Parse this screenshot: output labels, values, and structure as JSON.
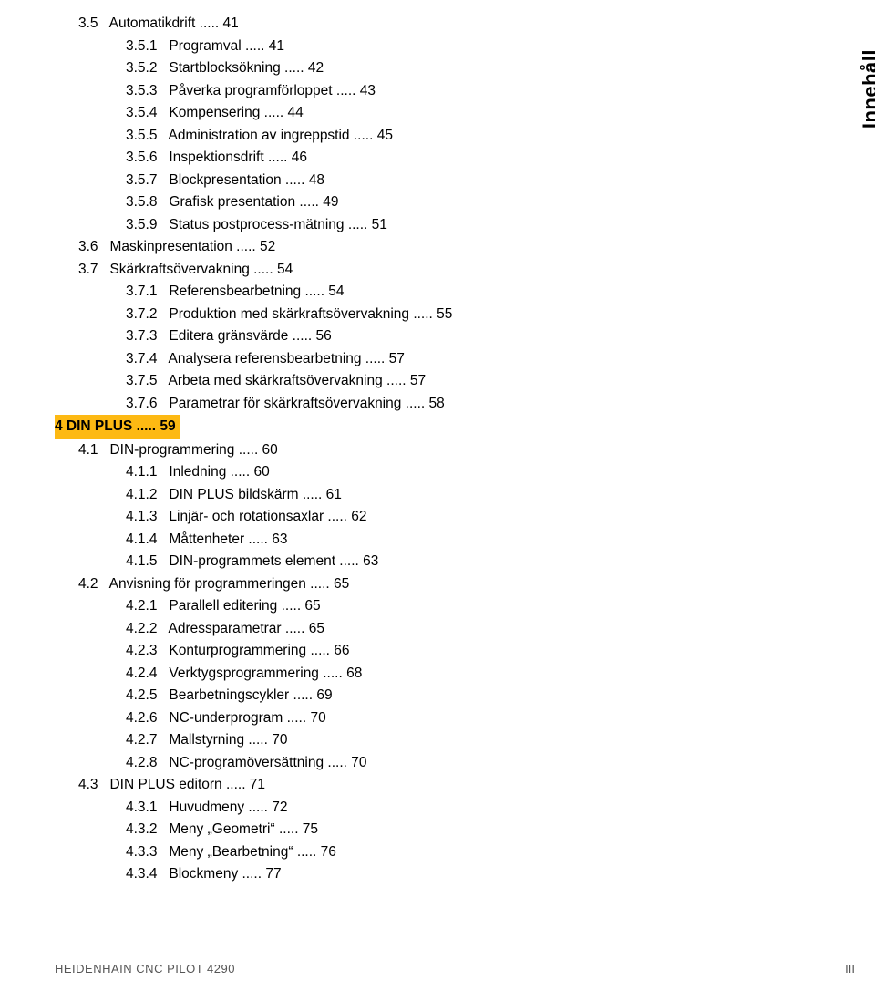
{
  "sidebar_label": "Innehåll",
  "footer_left": "HEIDENHAIN CNC PILOT 4290",
  "footer_right": "III",
  "toc": [
    {
      "level": 2,
      "num": "3.5",
      "title": "Automatikdrift",
      "page": "41"
    },
    {
      "level": 3,
      "num": "3.5.1",
      "title": "Programval",
      "page": "41"
    },
    {
      "level": 3,
      "num": "3.5.2",
      "title": "Startblocksökning",
      "page": "42"
    },
    {
      "level": 3,
      "num": "3.5.3",
      "title": "Påverka programförloppet",
      "page": "43"
    },
    {
      "level": 3,
      "num": "3.5.4",
      "title": "Kompensering",
      "page": "44"
    },
    {
      "level": 3,
      "num": "3.5.5",
      "title": "Administration av ingreppstid",
      "page": "45"
    },
    {
      "level": 3,
      "num": "3.5.6",
      "title": "Inspektionsdrift",
      "page": "46"
    },
    {
      "level": 3,
      "num": "3.5.7",
      "title": "Blockpresentation",
      "page": "48"
    },
    {
      "level": 3,
      "num": "3.5.8",
      "title": "Grafisk presentation",
      "page": "49"
    },
    {
      "level": 3,
      "num": "3.5.9",
      "title": "Status postprocess-mätning",
      "page": "51"
    },
    {
      "level": 2,
      "num": "3.6",
      "title": "Maskinpresentation",
      "page": "52"
    },
    {
      "level": 2,
      "num": "3.7",
      "title": "Skärkraftsövervakning",
      "page": "54"
    },
    {
      "level": 3,
      "num": "3.7.1",
      "title": "Referensbearbetning",
      "page": "54"
    },
    {
      "level": 3,
      "num": "3.7.2",
      "title": "Produktion med skärkraftsövervakning",
      "page": "55"
    },
    {
      "level": 3,
      "num": "3.7.3",
      "title": "Editera gränsvärde",
      "page": "56"
    },
    {
      "level": 3,
      "num": "3.7.4",
      "title": "Analysera referensbearbetning",
      "page": "57"
    },
    {
      "level": 3,
      "num": "3.7.5",
      "title": "Arbeta med skärkraftsövervakning",
      "page": "57"
    },
    {
      "level": 3,
      "num": "3.7.6",
      "title": "Parametrar för skärkraftsövervakning",
      "page": "58"
    },
    {
      "level": 1,
      "chapter": true,
      "highlight": true,
      "num": "4",
      "title": "DIN PLUS",
      "page": "59"
    },
    {
      "level": 2,
      "num": "4.1",
      "title": "DIN-programmering",
      "page": "60"
    },
    {
      "level": 3,
      "num": "4.1.1",
      "title": "Inledning",
      "page": "60"
    },
    {
      "level": 3,
      "num": "4.1.2",
      "title": "DIN PLUS bildskärm",
      "page": "61"
    },
    {
      "level": 3,
      "num": "4.1.3",
      "title": "Linjär- och rotationsaxlar",
      "page": "62"
    },
    {
      "level": 3,
      "num": "4.1.4",
      "title": "Måttenheter",
      "page": "63"
    },
    {
      "level": 3,
      "num": "4.1.5",
      "title": "DIN-programmets element",
      "page": "63"
    },
    {
      "level": 2,
      "num": "4.2",
      "title": "Anvisning för programmeringen",
      "page": "65"
    },
    {
      "level": 3,
      "num": "4.2.1",
      "title": "Parallell editering",
      "page": "65"
    },
    {
      "level": 3,
      "num": "4.2.2",
      "title": "Adressparametrar",
      "page": "65"
    },
    {
      "level": 3,
      "num": "4.2.3",
      "title": "Konturprogrammering",
      "page": "66"
    },
    {
      "level": 3,
      "num": "4.2.4",
      "title": "Verktygsprogrammering",
      "page": "68"
    },
    {
      "level": 3,
      "num": "4.2.5",
      "title": "Bearbetningscykler",
      "page": "69"
    },
    {
      "level": 3,
      "num": "4.2.6",
      "title": "NC-underprogram",
      "page": "70"
    },
    {
      "level": 3,
      "num": "4.2.7",
      "title": "Mallstyrning",
      "page": "70"
    },
    {
      "level": 3,
      "num": "4.2.8",
      "title": "NC-programöversättning",
      "page": "70"
    },
    {
      "level": 2,
      "num": "4.3",
      "title": "DIN PLUS editorn",
      "page": "71"
    },
    {
      "level": 3,
      "num": "4.3.1",
      "title": "Huvudmeny",
      "page": "72"
    },
    {
      "level": 3,
      "num": "4.3.2",
      "title": "Meny „Geometri“",
      "page": "75"
    },
    {
      "level": 3,
      "num": "4.3.3",
      "title": "Meny „Bearbetning“",
      "page": "76"
    },
    {
      "level": 3,
      "num": "4.3.4",
      "title": "Blockmeny",
      "page": "77"
    }
  ]
}
